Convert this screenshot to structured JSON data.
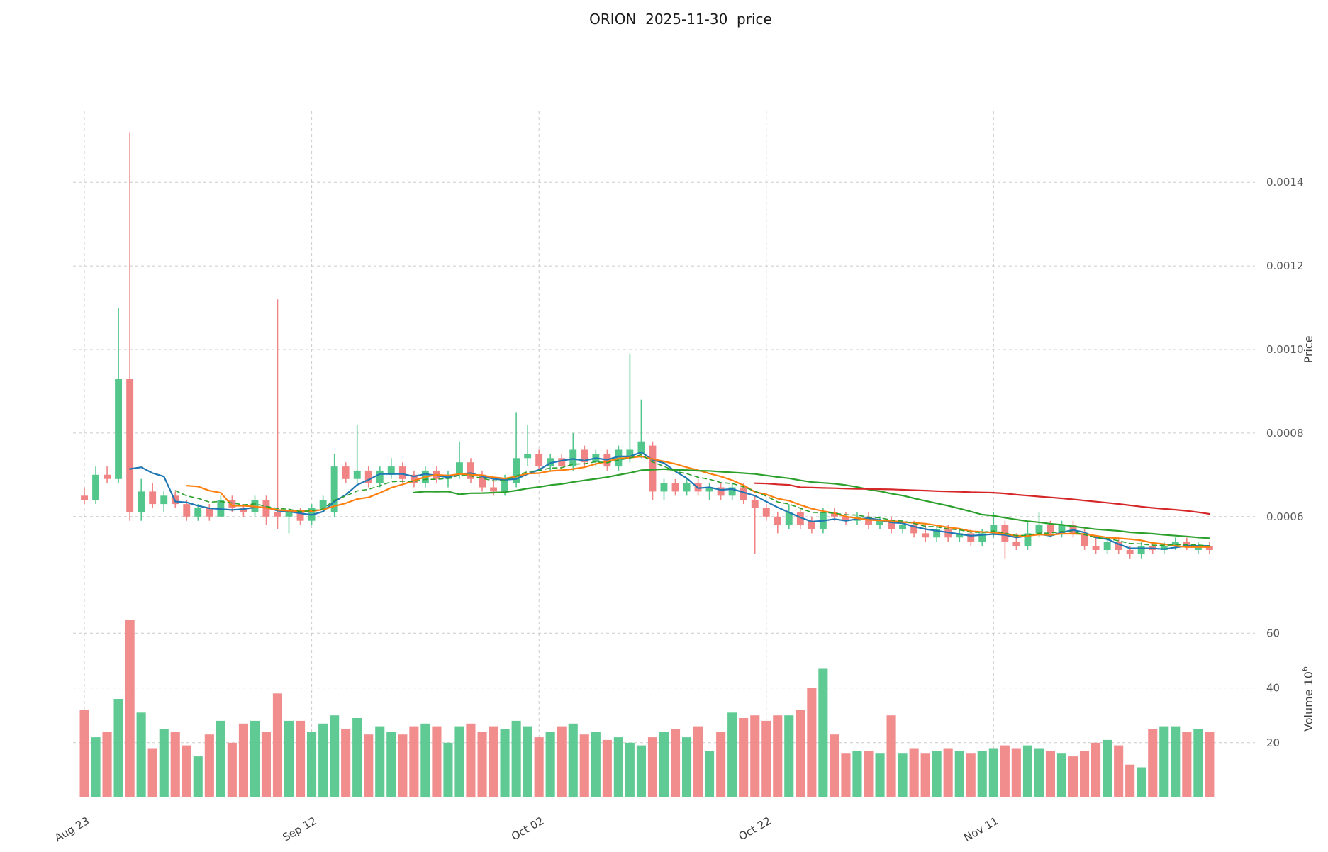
{
  "title": "ORION  2025-11-30  price",
  "chart_data": {
    "type": "candlestick",
    "symbol": "ORION",
    "as_of_date": "2025-11-30",
    "title": "ORION  2025-11-30  price",
    "x_ticks": [
      {
        "index": 0,
        "label": "Aug 23"
      },
      {
        "index": 20,
        "label": "Sep 12"
      },
      {
        "index": 40,
        "label": "Oct 02"
      },
      {
        "index": 60,
        "label": "Oct 22"
      },
      {
        "index": 80,
        "label": "Nov 11"
      }
    ],
    "price_axis": {
      "label": "Price",
      "ticks": [
        0.0006,
        0.0008,
        0.001,
        0.0012,
        0.0014
      ],
      "range": [
        0.00043,
        0.00157
      ]
    },
    "volume_axis": {
      "label_base": "Volume  10",
      "label_exp": "6",
      "ticks": [
        20,
        40,
        60
      ],
      "range": [
        0,
        72
      ]
    },
    "grid": true,
    "legend": false,
    "colors": {
      "up": "#53c68c",
      "down": "#f08383",
      "ma5": "#1f77b4",
      "ma10": "#ff7f0e",
      "ma30": "#2ca02c",
      "ma60": "#d62728",
      "ema": "#2ca02c",
      "grid": "#cbcbcb"
    },
    "indicators": [
      {
        "name": "sma-5",
        "type": "sma",
        "period": 5,
        "color": "#1f77b4",
        "style": "solid"
      },
      {
        "name": "sma-10",
        "type": "sma",
        "period": 10,
        "color": "#ff7f0e",
        "style": "solid"
      },
      {
        "name": "sma-30",
        "type": "sma",
        "period": 30,
        "color": "#2ca02c",
        "style": "solid"
      },
      {
        "name": "sma-60",
        "type": "sma",
        "period": 60,
        "color": "#d62728",
        "style": "solid"
      },
      {
        "name": "ema-9",
        "type": "ema",
        "period": 9,
        "color": "#2ca02c",
        "style": "dashed"
      }
    ],
    "ohlc": [
      [
        0.00065,
        0.00067,
        0.00063,
        0.00064
      ],
      [
        0.00064,
        0.00072,
        0.00063,
        0.0007
      ],
      [
        0.0007,
        0.00072,
        0.00068,
        0.00069
      ],
      [
        0.00069,
        0.0011,
        0.00068,
        0.00093
      ],
      [
        0.00093,
        0.00152,
        0.00059,
        0.00061
      ],
      [
        0.00061,
        0.00069,
        0.00059,
        0.00066
      ],
      [
        0.00066,
        0.00068,
        0.00062,
        0.00063
      ],
      [
        0.00063,
        0.00066,
        0.00061,
        0.00065
      ],
      [
        0.00065,
        0.00066,
        0.00062,
        0.00063
      ],
      [
        0.00063,
        0.00064,
        0.00059,
        0.0006
      ],
      [
        0.0006,
        0.00063,
        0.00059,
        0.00062
      ],
      [
        0.00062,
        0.00063,
        0.00059,
        0.0006
      ],
      [
        0.0006,
        0.00065,
        0.0006,
        0.00064
      ],
      [
        0.00064,
        0.00065,
        0.00061,
        0.00062
      ],
      [
        0.00062,
        0.00063,
        0.0006,
        0.00061
      ],
      [
        0.00061,
        0.00065,
        0.0006,
        0.00064
      ],
      [
        0.00064,
        0.00065,
        0.00058,
        0.0006
      ],
      [
        0.00061,
        0.00112,
        0.00057,
        0.0006
      ],
      [
        0.0006,
        0.00062,
        0.00056,
        0.00061
      ],
      [
        0.00061,
        0.00062,
        0.00058,
        0.00059
      ],
      [
        0.00059,
        0.00063,
        0.00058,
        0.00062
      ],
      [
        0.00062,
        0.00065,
        0.00061,
        0.00064
      ],
      [
        0.00061,
        0.00075,
        0.0006,
        0.00072
      ],
      [
        0.00072,
        0.00073,
        0.00068,
        0.00069
      ],
      [
        0.00069,
        0.00082,
        0.00068,
        0.00071
      ],
      [
        0.00071,
        0.00072,
        0.00067,
        0.00068
      ],
      [
        0.00068,
        0.00072,
        0.00067,
        0.00071
      ],
      [
        0.0007,
        0.00074,
        0.00069,
        0.00072
      ],
      [
        0.00072,
        0.00073,
        0.00068,
        0.00069
      ],
      [
        0.0007,
        0.00071,
        0.00067,
        0.00068
      ],
      [
        0.00068,
        0.00072,
        0.00067,
        0.00071
      ],
      [
        0.00071,
        0.00072,
        0.00068,
        0.00069
      ],
      [
        0.00069,
        0.00071,
        0.00067,
        0.0007
      ],
      [
        0.0007,
        0.00078,
        0.00069,
        0.00073
      ],
      [
        0.00073,
        0.00074,
        0.00068,
        0.00069
      ],
      [
        0.0007,
        0.00071,
        0.00066,
        0.00067
      ],
      [
        0.00067,
        0.00069,
        0.00065,
        0.00066
      ],
      [
        0.00066,
        0.0007,
        0.00065,
        0.00069
      ],
      [
        0.00068,
        0.00085,
        0.00067,
        0.00074
      ],
      [
        0.00074,
        0.00082,
        0.00072,
        0.00075
      ],
      [
        0.00075,
        0.00076,
        0.00071,
        0.00072
      ],
      [
        0.00072,
        0.00075,
        0.00071,
        0.00074
      ],
      [
        0.00074,
        0.00075,
        0.00071,
        0.00072
      ],
      [
        0.00072,
        0.0008,
        0.00071,
        0.00076
      ],
      [
        0.00076,
        0.00077,
        0.00072,
        0.00073
      ],
      [
        0.00073,
        0.00076,
        0.00072,
        0.00075
      ],
      [
        0.00075,
        0.00076,
        0.00071,
        0.00072
      ],
      [
        0.00072,
        0.00077,
        0.00071,
        0.00076
      ],
      [
        0.00074,
        0.00099,
        0.00073,
        0.00076
      ],
      [
        0.00075,
        0.00088,
        0.00074,
        0.00078
      ],
      [
        0.00077,
        0.00078,
        0.00064,
        0.00066
      ],
      [
        0.00066,
        0.00069,
        0.00064,
        0.00068
      ],
      [
        0.00068,
        0.00069,
        0.00065,
        0.00066
      ],
      [
        0.00066,
        0.00069,
        0.00065,
        0.00068
      ],
      [
        0.00068,
        0.00069,
        0.00065,
        0.00066
      ],
      [
        0.00066,
        0.00068,
        0.00064,
        0.00067
      ],
      [
        0.00067,
        0.00068,
        0.00064,
        0.00065
      ],
      [
        0.00065,
        0.00068,
        0.00064,
        0.00067
      ],
      [
        0.00067,
        0.00068,
        0.00063,
        0.00064
      ],
      [
        0.00064,
        0.00065,
        0.00051,
        0.00062
      ],
      [
        0.00062,
        0.00063,
        0.00059,
        0.0006
      ],
      [
        0.0006,
        0.00061,
        0.00056,
        0.00058
      ],
      [
        0.00058,
        0.00063,
        0.00057,
        0.00061
      ],
      [
        0.00061,
        0.00062,
        0.00057,
        0.00058
      ],
      [
        0.00059,
        0.0006,
        0.00056,
        0.00057
      ],
      [
        0.00057,
        0.00062,
        0.00056,
        0.00061
      ],
      [
        0.00061,
        0.00062,
        0.00059,
        0.0006
      ],
      [
        0.0006,
        0.00061,
        0.00058,
        0.00059
      ],
      [
        0.00059,
        0.00061,
        0.00058,
        0.0006
      ],
      [
        0.0006,
        0.00061,
        0.00057,
        0.00058
      ],
      [
        0.00058,
        0.0006,
        0.00057,
        0.00059
      ],
      [
        0.00059,
        0.0006,
        0.00056,
        0.00057
      ],
      [
        0.00057,
        0.00059,
        0.00056,
        0.00058
      ],
      [
        0.00058,
        0.00059,
        0.00055,
        0.00056
      ],
      [
        0.00056,
        0.00058,
        0.00054,
        0.00055
      ],
      [
        0.00055,
        0.00058,
        0.00054,
        0.00057
      ],
      [
        0.00057,
        0.00058,
        0.00054,
        0.00055
      ],
      [
        0.00055,
        0.00057,
        0.00054,
        0.00056
      ],
      [
        0.00056,
        0.00057,
        0.00053,
        0.00054
      ],
      [
        0.00054,
        0.00057,
        0.00053,
        0.00056
      ],
      [
        0.00056,
        0.00061,
        0.00055,
        0.00058
      ],
      [
        0.00058,
        0.00059,
        0.0005,
        0.00054
      ],
      [
        0.00054,
        0.00056,
        0.00052,
        0.00053
      ],
      [
        0.00053,
        0.00059,
        0.00052,
        0.00056
      ],
      [
        0.00056,
        0.00061,
        0.00055,
        0.00058
      ],
      [
        0.00058,
        0.00059,
        0.00055,
        0.00056
      ],
      [
        0.00056,
        0.00059,
        0.00055,
        0.00058
      ],
      [
        0.00058,
        0.00059,
        0.00055,
        0.00056
      ],
      [
        0.00056,
        0.00057,
        0.00052,
        0.00053
      ],
      [
        0.00053,
        0.00055,
        0.00051,
        0.00052
      ],
      [
        0.00052,
        0.00055,
        0.00051,
        0.00054
      ],
      [
        0.00054,
        0.00055,
        0.00051,
        0.00052
      ],
      [
        0.00052,
        0.00053,
        0.0005,
        0.00051
      ],
      [
        0.00051,
        0.00054,
        0.0005,
        0.00053
      ],
      [
        0.00053,
        0.00054,
        0.00051,
        0.00052
      ],
      [
        0.00052,
        0.00054,
        0.00051,
        0.00053
      ],
      [
        0.00053,
        0.00055,
        0.00052,
        0.00054
      ],
      [
        0.00054,
        0.00055,
        0.00052,
        0.00053
      ],
      [
        0.00052,
        0.00054,
        0.00051,
        0.00053
      ],
      [
        0.00053,
        0.00054,
        0.00051,
        0.00052
      ]
    ],
    "volume": [
      32,
      22,
      24,
      36,
      65,
      31,
      18,
      25,
      24,
      19,
      15,
      23,
      28,
      20,
      27,
      28,
      24,
      38,
      28,
      28,
      24,
      27,
      30,
      25,
      29,
      23,
      26,
      24,
      23,
      26,
      27,
      26,
      20,
      26,
      27,
      24,
      26,
      25,
      28,
      26,
      22,
      24,
      26,
      27,
      23,
      24,
      21,
      22,
      20,
      19,
      22,
      24,
      25,
      22,
      26,
      17,
      24,
      31,
      29,
      30,
      28,
      30,
      30,
      32,
      40,
      47,
      23,
      16,
      17,
      17,
      16,
      30,
      16,
      18,
      16,
      17,
      18,
      17,
      16,
      17,
      18,
      19,
      18,
      19,
      18,
      17,
      16,
      15,
      17,
      20,
      21,
      19,
      12,
      11,
      25,
      26,
      26,
      24,
      25,
      24
    ]
  }
}
